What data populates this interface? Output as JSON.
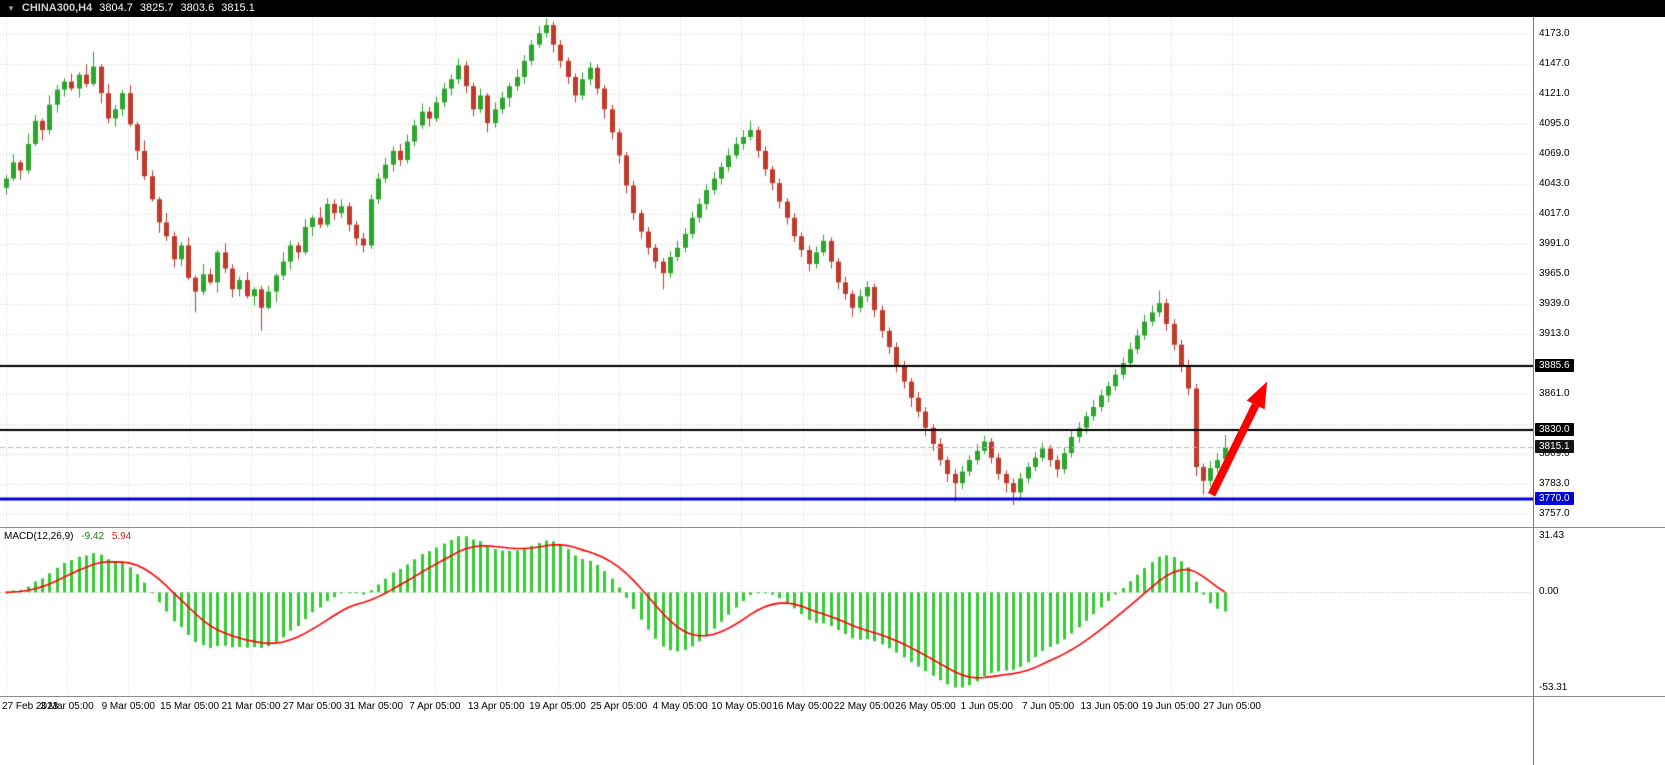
{
  "header": {
    "menu_glyph": "▼",
    "symbol": "CHINA300,H4",
    "open": "3804.7",
    "high": "3825.7",
    "low": "3803.6",
    "close": "3815.1"
  },
  "colors": {
    "bull": "#2BA52B",
    "bear": "#C03A2B",
    "macd_hist": "#35CC35",
    "macd_signal": "#FF0000",
    "grid": "#D4D4D4",
    "zero_line": "#B8B8B8",
    "bid_line": "#B9B9B9",
    "arrow": "#FF0000",
    "titlebar_bg": "#000000"
  },
  "price_axis": {
    "tags": [
      {
        "label": "3885.6",
        "price": 3885.6,
        "bg": "#000000",
        "name": "level-price-tag-3885"
      },
      {
        "label": "3830.0",
        "price": 3830.0,
        "bg": "#000000",
        "name": "level-price-tag-3830"
      },
      {
        "label": "3815.1",
        "price": 3815.1,
        "bg": "#141414",
        "name": "current-price-tag"
      },
      {
        "label": "3770.0",
        "price": 3770.0,
        "bg": "#0000D8",
        "name": "level-price-tag-3770"
      }
    ]
  },
  "macd_panel": {
    "label": "MACD(12,26,9)",
    "macd_value": "-9.42",
    "signal_value": "5.94",
    "tick_labels": [
      "31.43",
      "0.00",
      "-53.31"
    ]
  },
  "annotations": [
    {
      "type": "arrow",
      "color": "#FF0000",
      "from": {
        "bar": 165.2,
        "price": 3774
      },
      "to": {
        "bar": 172.8,
        "price": 3872
      }
    }
  ],
  "chart_data": {
    "type": "candlestick",
    "title": "CHINA300,H4",
    "symbol": "CHINA300",
    "timeframe": "H4",
    "x_labels": [
      "27 Feb 2023",
      "3 Mar 05:00",
      "9 Mar 05:00",
      "15 Mar 05:00",
      "21 Mar 05:00",
      "27 Mar 05:00",
      "31 Mar 05:00",
      "7 Apr 05:00",
      "13 Apr 05:00",
      "19 Apr 05:00",
      "25 Apr 05:00",
      "4 May 05:00",
      "10 May 05:00",
      "16 May 05:00",
      "22 May 05:00",
      "26 May 05:00",
      "1 Jun 05:00",
      "7 Jun 05:00",
      "13 Jun 05:00",
      "19 Jun 05:00",
      "27 Jun 05:00"
    ],
    "ylim": [
      3746,
      4188
    ],
    "y_ticks": [
      4173,
      4147,
      4121,
      4095,
      4069,
      4043,
      4017,
      3991,
      3965,
      3939,
      3913,
      3861,
      3809,
      3783,
      3757
    ],
    "y_grid_only": [
      3887,
      3835
    ],
    "levels": [
      {
        "price": 3885.6,
        "color": "#000000",
        "width": 2
      },
      {
        "price": 3830.0,
        "color": "#000000",
        "width": 2
      },
      {
        "price": 3770.0,
        "color": "#0000D8",
        "width": 3
      }
    ],
    "current_price": 3815.1,
    "indicator": {
      "type": "macd",
      "label": "MACD(12,26,9)",
      "params": [
        12,
        26,
        9
      ],
      "macd_value": -9.42,
      "signal_value": 5.94,
      "y_ticks": [
        31.43,
        0,
        -53.31
      ],
      "ylim": [
        -58,
        36
      ]
    },
    "ohlc": [
      [
        4040,
        4051,
        4034,
        4048
      ],
      [
        4048,
        4069,
        4046,
        4062
      ],
      [
        4062,
        4064,
        4047,
        4055
      ],
      [
        4055,
        4087,
        4052,
        4078
      ],
      [
        4078,
        4103,
        4076,
        4098
      ],
      [
        4098,
        4100,
        4081,
        4090
      ],
      [
        4090,
        4120,
        4086,
        4112
      ],
      [
        4112,
        4129,
        4105,
        4125
      ],
      [
        4125,
        4135,
        4119,
        4132
      ],
      [
        4132,
        4139,
        4124,
        4126
      ],
      [
        4126,
        4140,
        4118,
        4138
      ],
      [
        4138,
        4147,
        4127,
        4130
      ],
      [
        4130,
        4158,
        4128,
        4145
      ],
      [
        4145,
        4147,
        4113,
        4122
      ],
      [
        4122,
        4130,
        4096,
        4100
      ],
      [
        4100,
        4112,
        4093,
        4108
      ],
      [
        4108,
        4125,
        4102,
        4122
      ],
      [
        4122,
        4129,
        4093,
        4095
      ],
      [
        4095,
        4097,
        4064,
        4072
      ],
      [
        4072,
        4081,
        4047,
        4050
      ],
      [
        4050,
        4055,
        4028,
        4030
      ],
      [
        4030,
        4032,
        4001,
        4010
      ],
      [
        4010,
        4018,
        3994,
        3998
      ],
      [
        3998,
        4002,
        3971,
        3978
      ],
      [
        3978,
        3993,
        3972,
        3990
      ],
      [
        3990,
        3997,
        3960,
        3962
      ],
      [
        3962,
        3964,
        3932,
        3950
      ],
      [
        3950,
        3974,
        3947,
        3965
      ],
      [
        3965,
        3970,
        3956,
        3958
      ],
      [
        3958,
        3986,
        3949,
        3984
      ],
      [
        3984,
        3992,
        3966,
        3970
      ],
      [
        3970,
        3974,
        3945,
        3952
      ],
      [
        3952,
        3963,
        3946,
        3960
      ],
      [
        3960,
        3967,
        3944,
        3946
      ],
      [
        3946,
        3954,
        3938,
        3952
      ],
      [
        3952,
        3955,
        3916,
        3936
      ],
      [
        3936,
        3955,
        3934,
        3950
      ],
      [
        3950,
        3966,
        3941,
        3964
      ],
      [
        3964,
        3984,
        3960,
        3976
      ],
      [
        3976,
        3994,
        3969,
        3990
      ],
      [
        3990,
        3993,
        3978,
        3984
      ],
      [
        3984,
        4013,
        3982,
        4006
      ],
      [
        4006,
        4016,
        3998,
        4014
      ],
      [
        4014,
        4023,
        4005,
        4008
      ],
      [
        4008,
        4031,
        4006,
        4026
      ],
      [
        4026,
        4030,
        4012,
        4018
      ],
      [
        4018,
        4030,
        4014,
        4024
      ],
      [
        4024,
        4027,
        4002,
        4008
      ],
      [
        4008,
        4011,
        3990,
        3996
      ],
      [
        3996,
        4001,
        3984,
        3990
      ],
      [
        3990,
        4034,
        3987,
        4030
      ],
      [
        4030,
        4053,
        4026,
        4048
      ],
      [
        4048,
        4066,
        4044,
        4060
      ],
      [
        4060,
        4076,
        4054,
        4072
      ],
      [
        4072,
        4078,
        4059,
        4064
      ],
      [
        4064,
        4086,
        4061,
        4080
      ],
      [
        4080,
        4099,
        4076,
        4094
      ],
      [
        4094,
        4113,
        4091,
        4106
      ],
      [
        4106,
        4110,
        4093,
        4100
      ],
      [
        4100,
        4119,
        4097,
        4114
      ],
      [
        4114,
        4131,
        4110,
        4126
      ],
      [
        4126,
        4138,
        4120,
        4134
      ],
      [
        4134,
        4152,
        4130,
        4146
      ],
      [
        4146,
        4150,
        4122,
        4128
      ],
      [
        4128,
        4131,
        4102,
        4108
      ],
      [
        4108,
        4126,
        4105,
        4120
      ],
      [
        4120,
        4122,
        4088,
        4096
      ],
      [
        4096,
        4114,
        4092,
        4108
      ],
      [
        4108,
        4123,
        4104,
        4118
      ],
      [
        4118,
        4131,
        4110,
        4128
      ],
      [
        4128,
        4143,
        4124,
        4136
      ],
      [
        4136,
        4155,
        4130,
        4150
      ],
      [
        4150,
        4168,
        4146,
        4164
      ],
      [
        4164,
        4180,
        4161,
        4174
      ],
      [
        4174,
        4187,
        4170,
        4181
      ],
      [
        4181,
        4184,
        4157,
        4164
      ],
      [
        4164,
        4168,
        4144,
        4150
      ],
      [
        4150,
        4153,
        4130,
        4136
      ],
      [
        4136,
        4139,
        4114,
        4120
      ],
      [
        4120,
        4140,
        4116,
        4134
      ],
      [
        4134,
        4149,
        4129,
        4144
      ],
      [
        4144,
        4147,
        4121,
        4126
      ],
      [
        4126,
        4129,
        4100,
        4108
      ],
      [
        4108,
        4112,
        4082,
        4088
      ],
      [
        4088,
        4091,
        4061,
        4068
      ],
      [
        4068,
        4071,
        4035,
        4042
      ],
      [
        4042,
        4046,
        4012,
        4018
      ],
      [
        4018,
        4021,
        3996,
        4002
      ],
      [
        4002,
        4006,
        3982,
        3988
      ],
      [
        3988,
        3991,
        3970,
        3976
      ],
      [
        3976,
        3979,
        3952,
        3966
      ],
      [
        3966,
        3985,
        3962,
        3980
      ],
      [
        3980,
        3994,
        3976,
        3988
      ],
      [
        3988,
        4005,
        3984,
        4000
      ],
      [
        4000,
        4019,
        3996,
        4014
      ],
      [
        4014,
        4031,
        4010,
        4026
      ],
      [
        4026,
        4043,
        4021,
        4038
      ],
      [
        4038,
        4054,
        4034,
        4048
      ],
      [
        4048,
        4062,
        4043,
        4058
      ],
      [
        4058,
        4074,
        4054,
        4068
      ],
      [
        4068,
        4084,
        4065,
        4078
      ],
      [
        4078,
        4090,
        4073,
        4084
      ],
      [
        4084,
        4098,
        4081,
        4090
      ],
      [
        4090,
        4093,
        4066,
        4072
      ],
      [
        4072,
        4076,
        4050,
        4056
      ],
      [
        4056,
        4059,
        4038,
        4044
      ],
      [
        4044,
        4048,
        4022,
        4028
      ],
      [
        4028,
        4031,
        4008,
        4014
      ],
      [
        4014,
        4018,
        3993,
        3998
      ],
      [
        3998,
        4001,
        3980,
        3986
      ],
      [
        3986,
        3990,
        3968,
        3974
      ],
      [
        3974,
        3989,
        3970,
        3984
      ],
      [
        3984,
        3999,
        3981,
        3994
      ],
      [
        3994,
        3997,
        3970,
        3976
      ],
      [
        3976,
        3979,
        3952,
        3958
      ],
      [
        3958,
        3963,
        3943,
        3948
      ],
      [
        3948,
        3951,
        3928,
        3936
      ],
      [
        3936,
        3952,
        3932,
        3946
      ],
      [
        3946,
        3959,
        3941,
        3954
      ],
      [
        3954,
        3957,
        3928,
        3934
      ],
      [
        3934,
        3938,
        3910,
        3916
      ],
      [
        3916,
        3919,
        3896,
        3902
      ],
      [
        3902,
        3906,
        3880,
        3886
      ],
      [
        3886,
        3890,
        3866,
        3872
      ],
      [
        3872,
        3875,
        3850,
        3858
      ],
      [
        3858,
        3863,
        3841,
        3846
      ],
      [
        3846,
        3850,
        3825,
        3832
      ],
      [
        3832,
        3835,
        3812,
        3818
      ],
      [
        3818,
        3823,
        3799,
        3804
      ],
      [
        3804,
        3807,
        3785,
        3792
      ],
      [
        3792,
        3796,
        3768,
        3784
      ],
      [
        3784,
        3799,
        3779,
        3794
      ],
      [
        3794,
        3808,
        3790,
        3804
      ],
      [
        3804,
        3818,
        3800,
        3812
      ],
      [
        3812,
        3825,
        3809,
        3820
      ],
      [
        3820,
        3823,
        3801,
        3806
      ],
      [
        3806,
        3810,
        3787,
        3792
      ],
      [
        3792,
        3795,
        3776,
        3784
      ],
      [
        3784,
        3788,
        3765,
        3776
      ],
      [
        3776,
        3793,
        3771,
        3788
      ],
      [
        3788,
        3802,
        3784,
        3798
      ],
      [
        3798,
        3811,
        3794,
        3806
      ],
      [
        3806,
        3819,
        3803,
        3814
      ],
      [
        3814,
        3817,
        3798,
        3804
      ],
      [
        3804,
        3808,
        3789,
        3796
      ],
      [
        3796,
        3815,
        3792,
        3810
      ],
      [
        3810,
        3829,
        3806,
        3824
      ],
      [
        3824,
        3837,
        3819,
        3832
      ],
      [
        3832,
        3846,
        3827,
        3842
      ],
      [
        3842,
        3856,
        3838,
        3850
      ],
      [
        3850,
        3865,
        3846,
        3860
      ],
      [
        3860,
        3872,
        3854,
        3868
      ],
      [
        3868,
        3883,
        3864,
        3878
      ],
      [
        3878,
        3893,
        3874,
        3888
      ],
      [
        3888,
        3906,
        3884,
        3900
      ],
      [
        3900,
        3917,
        3896,
        3912
      ],
      [
        3912,
        3930,
        3908,
        3924
      ],
      [
        3924,
        3938,
        3920,
        3932
      ],
      [
        3932,
        3951,
        3928,
        3940
      ],
      [
        3940,
        3944,
        3916,
        3922
      ],
      [
        3922,
        3926,
        3899,
        3904
      ],
      [
        3904,
        3908,
        3880,
        3886
      ],
      [
        3886,
        3891,
        3860,
        3866
      ],
      [
        3866,
        3870,
        3790,
        3798
      ],
      [
        3798,
        3801,
        3774,
        3786
      ],
      [
        3786,
        3803,
        3781,
        3797
      ],
      [
        3797,
        3810,
        3793,
        3804
      ],
      [
        3804.7,
        3825.7,
        3803.6,
        3815.1
      ]
    ]
  }
}
